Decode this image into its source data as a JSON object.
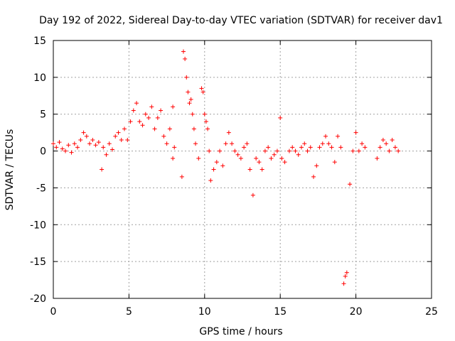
{
  "chart_data": {
    "type": "scatter",
    "title": "Day 192 of 2022, Sidereal Day-to-day VTEC variation (SDTVAR) for receiver dav1",
    "xlabel": "GPS time / hours",
    "ylabel": "SDTVAR / TECUs",
    "xlim": [
      0,
      25
    ],
    "ylim": [
      -20,
      15
    ],
    "xticks": [
      0,
      5,
      10,
      15,
      20,
      25
    ],
    "yticks": [
      -20,
      -15,
      -10,
      -5,
      0,
      5,
      10,
      15
    ],
    "xtick_labels": [
      "0",
      "5",
      "10",
      "15",
      "20",
      "25"
    ],
    "ytick_labels": [
      "-20",
      "-15",
      "-10",
      "-5",
      "0",
      "5",
      "10",
      "15"
    ],
    "grid": true,
    "marker": "+",
    "color": "#ff0000",
    "series": [
      {
        "name": "SDTVAR",
        "x": [
          0.0,
          0.2,
          0.4,
          0.6,
          0.8,
          1.0,
          1.2,
          1.4,
          1.6,
          1.8,
          2.0,
          2.2,
          2.4,
          2.6,
          2.8,
          3.0,
          3.2,
          3.3,
          3.5,
          3.7,
          3.9,
          4.1,
          4.3,
          4.5,
          4.7,
          4.9,
          5.1,
          5.3,
          5.5,
          5.7,
          5.9,
          6.1,
          6.3,
          6.5,
          6.7,
          6.9,
          7.1,
          7.3,
          7.5,
          7.7,
          7.9,
          8.5,
          8.6,
          8.7,
          8.8,
          8.9,
          9.0,
          9.1,
          9.2,
          9.3,
          9.4,
          9.6,
          9.8,
          9.9,
          10.0,
          10.1,
          10.2,
          10.3,
          10.4,
          10.6,
          10.8,
          11.0,
          11.2,
          11.4,
          11.6,
          11.8,
          12.0,
          12.2,
          12.4,
          12.6,
          12.8,
          13.0,
          13.2,
          13.4,
          13.6,
          13.8,
          14.0,
          14.2,
          14.4,
          14.6,
          14.8,
          15.0,
          15.1,
          15.3,
          15.6,
          15.8,
          16.0,
          16.2,
          16.4,
          16.6,
          16.8,
          17.0,
          17.2,
          17.4,
          17.6,
          17.8,
          18.0,
          18.2,
          18.4,
          18.6,
          18.8,
          19.0,
          19.2,
          19.3,
          19.4,
          19.6,
          19.8,
          20.0,
          20.2,
          20.4,
          20.6,
          21.4,
          21.6,
          21.8,
          22.0,
          22.2,
          22.4,
          22.6,
          22.8,
          7.9,
          8.0
        ],
        "y": [
          1.0,
          0.5,
          1.2,
          0.3,
          0.0,
          0.8,
          -0.2,
          1.0,
          0.5,
          1.5,
          2.5,
          2.0,
          1.0,
          1.5,
          0.8,
          1.2,
          -2.5,
          0.5,
          -0.5,
          1.0,
          0.2,
          2.0,
          2.5,
          1.5,
          3.0,
          1.5,
          4.0,
          5.5,
          6.5,
          4.0,
          3.5,
          5.0,
          4.5,
          6.0,
          3.0,
          4.5,
          5.5,
          2.0,
          1.0,
          3.0,
          6.0,
          -3.5,
          13.5,
          12.5,
          10.0,
          8.0,
          6.5,
          7.0,
          5.0,
          3.0,
          1.0,
          -1.0,
          8.5,
          8.0,
          5.0,
          4.0,
          3.0,
          0.0,
          -4.0,
          -2.5,
          -1.5,
          0.0,
          -2.0,
          1.0,
          2.5,
          1.0,
          0.0,
          -0.5,
          -1.0,
          0.5,
          1.0,
          -2.5,
          -6.0,
          -1.0,
          -1.5,
          -2.5,
          0.0,
          0.5,
          -1.0,
          -0.5,
          0.0,
          4.5,
          -1.0,
          -1.5,
          0.0,
          0.5,
          0.0,
          -0.5,
          0.5,
          1.0,
          0.0,
          0.5,
          -3.5,
          -2.0,
          0.5,
          1.0,
          2.0,
          1.0,
          0.5,
          -1.5,
          2.0,
          0.5,
          -18.0,
          -17.0,
          -16.5,
          -4.5,
          0.0,
          2.5,
          0.0,
          1.0,
          0.5,
          -1.0,
          0.5,
          1.5,
          1.0,
          0.0,
          1.5,
          0.5,
          0.0,
          -1.0,
          0.5
        ]
      }
    ]
  }
}
